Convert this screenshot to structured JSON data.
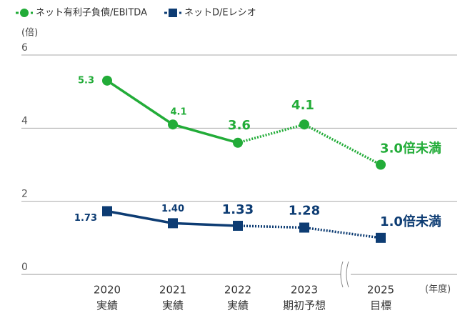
{
  "chart_data": {
    "type": "line",
    "y_unit_label": "(倍)",
    "x_unit_label": "(年度)",
    "categories": [
      "2020",
      "2021",
      "2022",
      "2023",
      "2025"
    ],
    "category_sublabels": [
      "実績",
      "実績",
      "実績",
      "期初予想",
      "目標"
    ],
    "dashed_from_index": 2,
    "ylim": [
      0,
      6
    ],
    "yticks": [
      0,
      2,
      4,
      6
    ],
    "grid": true,
    "legend": "top-left",
    "series": [
      {
        "name": "ネット有利子負債/EBITDA",
        "color": "#22ac38",
        "marker": "circle",
        "values": [
          5.3,
          4.1,
          3.6,
          4.1,
          3.0
        ],
        "value_labels": [
          "5.3",
          "4.1",
          "3.6",
          "4.1",
          "3.0倍未満"
        ]
      },
      {
        "name": "ネットD/Eレシオ",
        "color": "#0d3c73",
        "marker": "square",
        "values": [
          1.73,
          1.4,
          1.33,
          1.28,
          1.0
        ],
        "value_labels": [
          "1.73",
          "1.40",
          "1.33",
          "1.28",
          "1.0倍未満"
        ]
      }
    ]
  }
}
